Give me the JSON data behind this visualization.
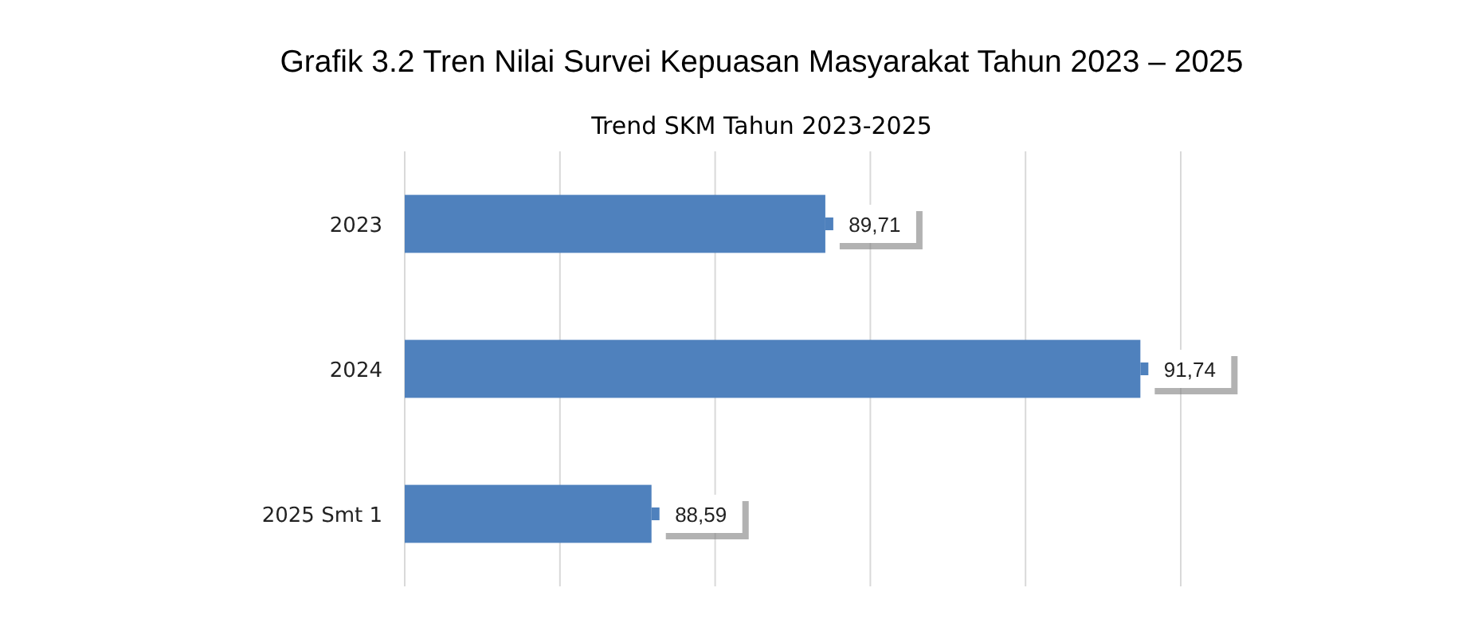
{
  "chart_data": {
    "type": "bar",
    "orientation": "horizontal",
    "title": "Grafik 3.2 Tren Nilai Survei Kepuasan Masyarakat  Tahun 2023 – 2025",
    "subtitle": "Trend SKM Tahun 2023-2025",
    "categories": [
      "2023",
      "2024",
      "2025 Smt 1"
    ],
    "values": [
      89.71,
      91.74,
      88.59
    ],
    "color": "#4f81bd",
    "xlim": [
      87,
      92
    ],
    "xticks": [
      {
        "value": 87,
        "label": null
      },
      {
        "value": 88,
        "label": null
      },
      {
        "value": 89,
        "label": null
      },
      {
        "value": 90,
        "label": null
      },
      {
        "value": 91,
        "label": null
      },
      {
        "value": 92,
        "label": null
      }
    ],
    "value_labels": [
      "89,71",
      "91,74",
      "88,59"
    ],
    "grid": "x",
    "tick_labels": "y"
  }
}
